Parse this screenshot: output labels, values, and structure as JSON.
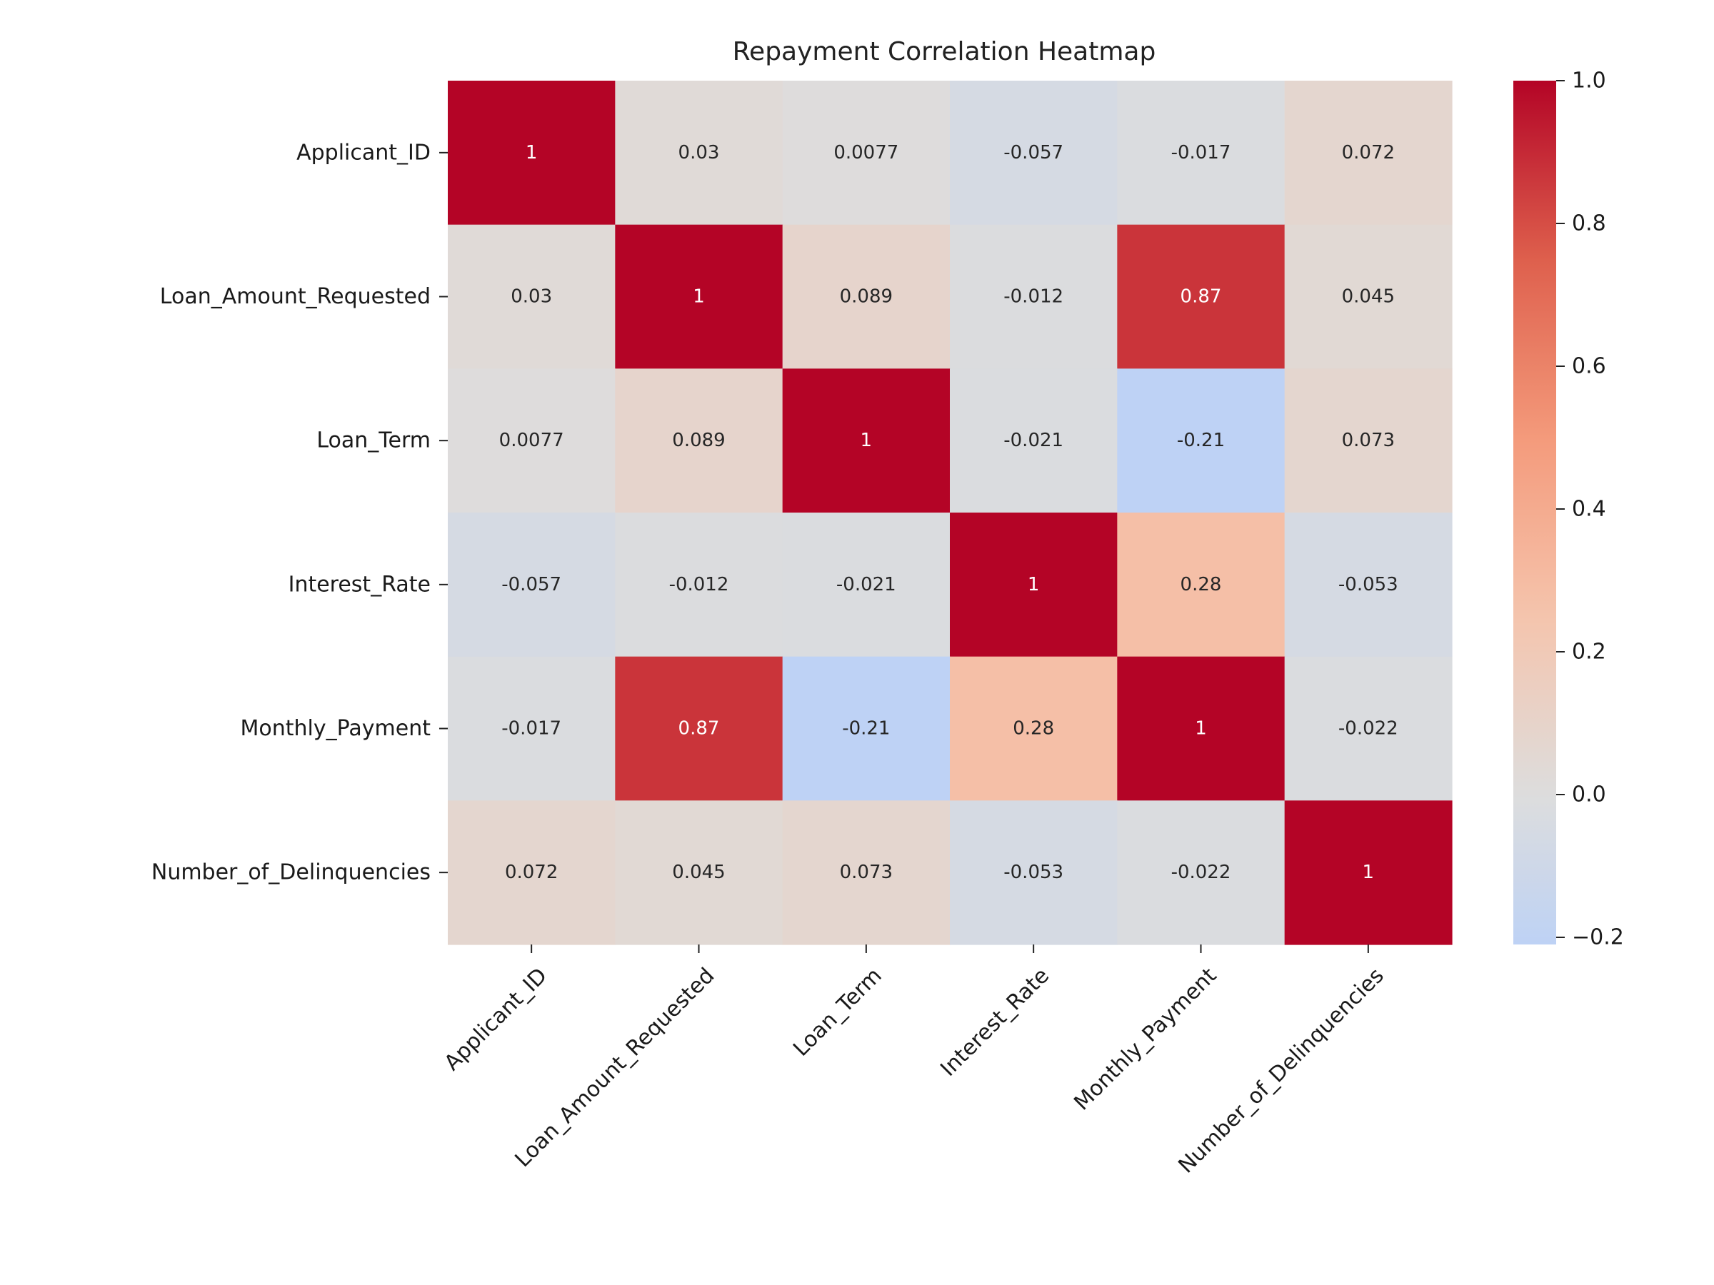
{
  "chart_data": {
    "type": "heatmap",
    "title": "Repayment Correlation Heatmap",
    "xlabel": "",
    "ylabel": "",
    "rows": [
      "Applicant_ID",
      "Loan_Amount_Requested",
      "Loan_Term",
      "Interest_Rate",
      "Monthly_Payment",
      "Number_of_Delinquencies"
    ],
    "columns": [
      "Applicant_ID",
      "Loan_Amount_Requested",
      "Loan_Term",
      "Interest_Rate",
      "Monthly_Payment",
      "Number_of_Delinquencies"
    ],
    "values": [
      [
        1,
        0.03,
        0.0077,
        -0.057,
        -0.017,
        0.072
      ],
      [
        0.03,
        1,
        0.089,
        -0.012,
        0.87,
        0.045
      ],
      [
        0.0077,
        0.089,
        1,
        -0.021,
        -0.21,
        0.073
      ],
      [
        -0.057,
        -0.012,
        -0.021,
        1,
        0.28,
        -0.053
      ],
      [
        -0.017,
        0.87,
        -0.21,
        0.28,
        1,
        -0.022
      ],
      [
        0.072,
        0.045,
        0.073,
        -0.053,
        -0.022,
        1
      ]
    ],
    "cell_labels": [
      [
        "1",
        "0.03",
        "0.0077",
        "-0.057",
        "-0.017",
        "0.072"
      ],
      [
        "0.03",
        "1",
        "0.089",
        "-0.012",
        "0.87",
        "0.045"
      ],
      [
        "0.0077",
        "0.089",
        "1",
        "-0.021",
        "-0.21",
        "0.073"
      ],
      [
        "-0.057",
        "-0.012",
        "-0.021",
        "1",
        "0.28",
        "-0.053"
      ],
      [
        "-0.017",
        "0.87",
        "-0.21",
        "0.28",
        "1",
        "-0.022"
      ],
      [
        "0.072",
        "0.045",
        "0.073",
        "-0.053",
        "-0.022",
        "1"
      ]
    ],
    "colormap": "coolwarm",
    "color_center": 0,
    "color_range": [
      -0.21,
      1.0
    ],
    "colorbar": {
      "position": "right",
      "ticks": [
        1.0,
        0.8,
        0.6,
        0.4,
        0.2,
        0.0,
        -0.2
      ],
      "tick_labels": [
        "1.0",
        "0.8",
        "0.6",
        "0.4",
        "0.2",
        "0.0",
        "−0.2"
      ]
    },
    "x_tick_rotation": 45,
    "grid": false
  }
}
